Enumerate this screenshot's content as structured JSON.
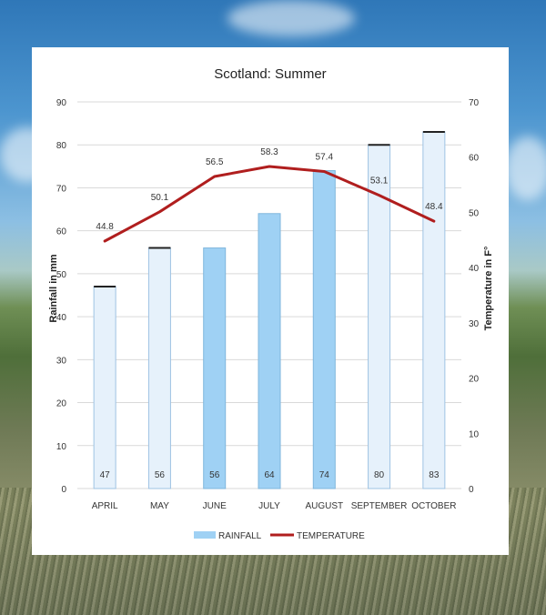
{
  "chart_data": {
    "type": "bar",
    "title": "Scotland: Summer",
    "categories": [
      "APRIL",
      "MAY",
      "JUNE",
      "JULY",
      "AUGUST",
      "SEPTEMBER",
      "OCTOBER"
    ],
    "ylabel": "Rainfall in mm",
    "y2label": "Temperature in F°",
    "ylim": [
      0,
      90
    ],
    "y2lim": [
      0,
      70
    ],
    "yticks": [
      "0",
      "10",
      "20",
      "30",
      "40",
      "50",
      "60",
      "70",
      "80",
      "90"
    ],
    "y2ticks": [
      "0",
      "10",
      "20",
      "30",
      "40",
      "50",
      "60",
      "70"
    ],
    "grid": true,
    "legend_position": "bottom",
    "series": [
      {
        "name": "RAINFALL",
        "type": "bar",
        "axis": "left",
        "values": [
          47,
          56,
          56,
          64,
          74,
          80,
          83
        ],
        "labels": [
          "47",
          "56",
          "56",
          "64",
          "74",
          "80",
          "83"
        ],
        "highlighted": [
          false,
          false,
          true,
          true,
          true,
          false,
          false
        ],
        "color": "#9fd1f4"
      },
      {
        "name": "TEMPERATURE",
        "type": "line",
        "axis": "right",
        "values": [
          44.8,
          50.1,
          56.5,
          58.3,
          57.4,
          53.1,
          48.4
        ],
        "labels": [
          "44.8",
          "50.1",
          "56.5",
          "58.3",
          "57.4",
          "53.1",
          "48.4"
        ],
        "color": "#b01e1e"
      }
    ],
    "colors": {
      "bar_light": "#e6f1fb",
      "bar_highlight": "#9fd1f4",
      "bar_outline": "#222222",
      "line": "#b01e1e",
      "grid": "#d9d9d9"
    }
  }
}
